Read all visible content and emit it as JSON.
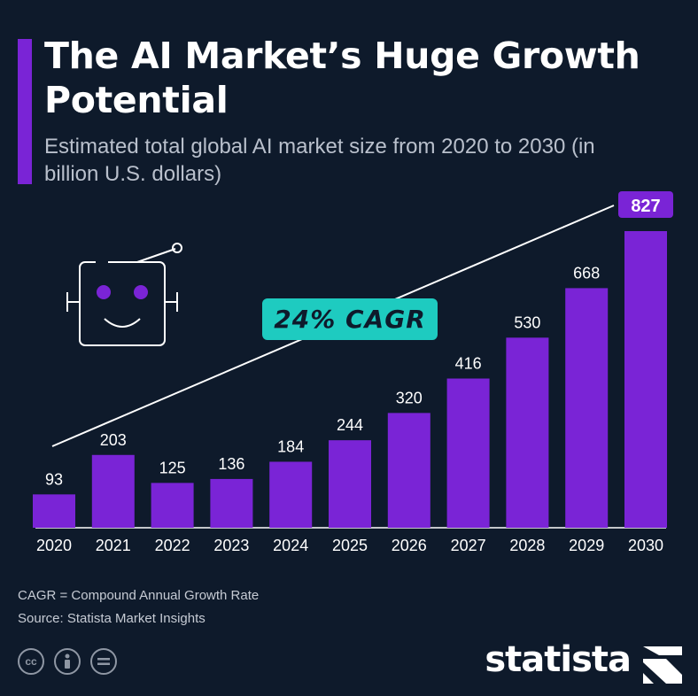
{
  "header": {
    "title": "The AI Market’s Huge Growth Potential",
    "subtitle": "Estimated total global AI market size from 2020 to 2030 (in billion U.S. dollars)"
  },
  "callout": {
    "cagr_label": "24% CAGR"
  },
  "footer": {
    "note": "CAGR = Compound Annual Growth Rate",
    "source": "Source: Statista Market Insights",
    "brand": "statista",
    "license_icons": [
      "cc-icon",
      "attribution-icon",
      "no-derivatives-icon"
    ]
  },
  "colors": {
    "background": "#0e1a2b",
    "bar": "#7a24d6",
    "highlight_label_bg": "#7a24d6",
    "cagr_pill": "#1ecbc0",
    "text": "#ffffff"
  },
  "chart_data": {
    "type": "bar",
    "title": "The AI Market’s Huge Growth Potential",
    "xlabel": "",
    "ylabel": "billion U.S. dollars",
    "categories": [
      "2020",
      "2021",
      "2022",
      "2023",
      "2024",
      "2025",
      "2026",
      "2027",
      "2028",
      "2029",
      "2030"
    ],
    "values": [
      93,
      203,
      125,
      136,
      184,
      244,
      320,
      416,
      530,
      668,
      827
    ],
    "ylim": [
      0,
      827
    ],
    "grid": false,
    "highlighted_label": "2030",
    "annotation": "24% CAGR trend line"
  }
}
